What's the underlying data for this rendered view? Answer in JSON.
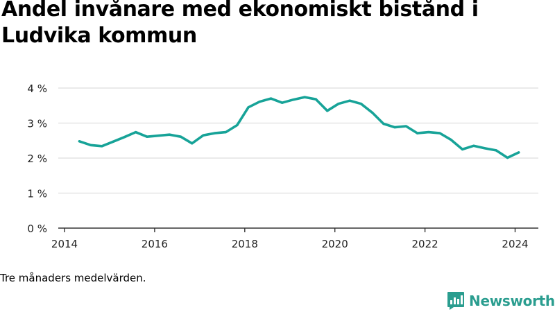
{
  "title": "Andel invånare med ekonomiskt bistånd i Ludvika kommun",
  "note": "Tre månaders medelvärden.",
  "logo": {
    "text": "Newsworthy",
    "icon": "newsworthy-logo-icon"
  },
  "colors": {
    "line": "#17a398",
    "grid": "#dddddd",
    "axis": "#333333",
    "logo": "#2a9d8f"
  },
  "chart_data": {
    "type": "line",
    "title": "Andel invånare med ekonomiskt bistånd i Ludvika kommun",
    "xlabel": "",
    "ylabel": "",
    "xlim": [
      2014,
      2024.6
    ],
    "ylim": [
      0,
      4
    ],
    "xticks": [
      2014,
      2016,
      2018,
      2020,
      2022,
      2024
    ],
    "xtick_labels": [
      "2014",
      "2016",
      "2018",
      "2020",
      "2022",
      "2024"
    ],
    "yticks": [
      0,
      1,
      2,
      3,
      4
    ],
    "ytick_labels": [
      "0 %",
      "1 %",
      "2 %",
      "3 %",
      "4 %"
    ],
    "grid": "horizontal",
    "legend": "none",
    "series": [
      {
        "x": [
          2014.33,
          2014.58,
          2014.83,
          2015.08,
          2015.33,
          2015.58,
          2015.83,
          2016.08,
          2016.33,
          2016.58,
          2016.83,
          2017.08,
          2017.33,
          2017.58,
          2017.83,
          2018.08,
          2018.33,
          2018.58,
          2018.83,
          2019.08,
          2019.33,
          2019.58,
          2019.83,
          2020.08,
          2020.33,
          2020.58,
          2020.83,
          2021.08,
          2021.33,
          2021.58,
          2021.83,
          2022.08,
          2022.33,
          2022.58,
          2022.83,
          2023.08,
          2023.33,
          2023.58,
          2023.83,
          2024.08
        ],
        "values": [
          2.48,
          2.37,
          2.34,
          2.47,
          2.6,
          2.74,
          2.61,
          2.64,
          2.67,
          2.61,
          2.42,
          2.65,
          2.71,
          2.74,
          2.94,
          3.45,
          3.61,
          3.7,
          3.58,
          3.67,
          3.74,
          3.68,
          3.35,
          3.55,
          3.64,
          3.55,
          3.3,
          2.98,
          2.88,
          2.91,
          2.71,
          2.74,
          2.71,
          2.52,
          2.25,
          2.35,
          2.28,
          2.22,
          2.01,
          2.16
        ]
      }
    ]
  }
}
